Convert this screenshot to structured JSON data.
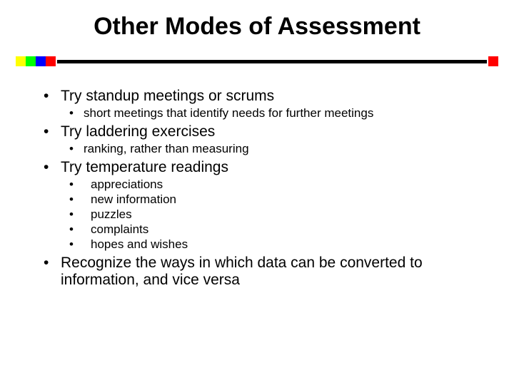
{
  "title": "Other Modes of Assessment",
  "divider": {
    "squares": [
      "#ffff00",
      "#00ff00",
      "#0000ff",
      "#ff0000"
    ],
    "bar_color": "#000000",
    "end_square": "#ff0000"
  },
  "bullets": {
    "b1": "Try standup meetings or scrums",
    "b1_1": "short meetings that identify needs for further meetings",
    "b2": "Try laddering exercises",
    "b2_1": "ranking, rather than measuring",
    "b3": "Try temperature readings",
    "b3_1": "appreciations",
    "b3_2": "new information",
    "b3_3": "puzzles",
    "b3_4": "complaints",
    "b3_5": "hopes and wishes",
    "b4": "Recognize the ways in which data can be converted to information, and vice versa"
  },
  "typography": {
    "title_fontsize": 34,
    "l1_fontsize": 21,
    "l2_fontsize": 17,
    "font_family": "Arial",
    "text_color": "#000000",
    "background_color": "#ffffff"
  }
}
